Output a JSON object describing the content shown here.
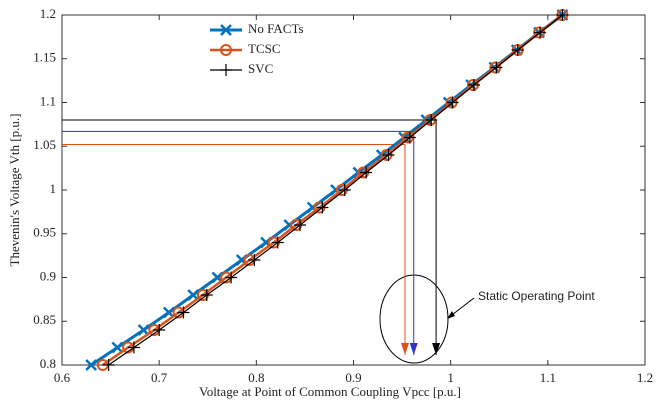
{
  "chart_data": {
    "type": "line",
    "xlabel": "Voltage at Point of Common Coupling Vpcc [p.u.]",
    "ylabel": "Thevenin's Voltage Vth [p.u.]",
    "xlim": [
      0.6,
      1.2
    ],
    "ylim": [
      0.8,
      1.2
    ],
    "xticks": [
      0.6,
      0.7,
      0.8,
      0.9,
      1,
      1.1,
      1.2
    ],
    "yticks": [
      0.8,
      0.85,
      0.9,
      0.95,
      1,
      1.05,
      1.1,
      1.15,
      1.2
    ],
    "grid": false,
    "legend": "upper center",
    "series": [
      {
        "name": "No FACTs",
        "color": "#0072bd",
        "marker": "x",
        "x": [
          0.63,
          0.657,
          0.684,
          0.71,
          0.735,
          0.76,
          0.785,
          0.81,
          0.834,
          0.858,
          0.882,
          0.905,
          0.929,
          0.952,
          0.975,
          0.998,
          1.021,
          1.045,
          1.068,
          1.091,
          1.115
        ],
        "values": [
          0.8,
          0.82,
          0.84,
          0.86,
          0.88,
          0.9,
          0.92,
          0.94,
          0.96,
          0.98,
          1.0,
          1.02,
          1.04,
          1.06,
          1.08,
          1.1,
          1.12,
          1.14,
          1.16,
          1.18,
          1.2
        ]
      },
      {
        "name": "TCSC",
        "color": "#d95319",
        "marker": "o",
        "x": [
          0.642,
          0.668,
          0.695,
          0.72,
          0.745,
          0.769,
          0.793,
          0.818,
          0.841,
          0.865,
          0.888,
          0.91,
          0.934,
          0.956,
          0.979,
          1.001,
          1.023,
          1.046,
          1.069,
          1.091,
          1.115
        ],
        "values": [
          0.8,
          0.82,
          0.84,
          0.86,
          0.88,
          0.9,
          0.92,
          0.94,
          0.96,
          0.98,
          1.0,
          1.02,
          1.04,
          1.06,
          1.08,
          1.1,
          1.12,
          1.14,
          1.16,
          1.18,
          1.2
        ]
      },
      {
        "name": "SVC",
        "color": "#000000",
        "marker": "+",
        "x": [
          0.648,
          0.674,
          0.7,
          0.725,
          0.749,
          0.774,
          0.798,
          0.822,
          0.845,
          0.868,
          0.891,
          0.913,
          0.936,
          0.958,
          0.98,
          1.002,
          1.024,
          1.047,
          1.069,
          1.092,
          1.115
        ],
        "values": [
          0.8,
          0.82,
          0.84,
          0.86,
          0.88,
          0.9,
          0.92,
          0.94,
          0.96,
          0.98,
          1.0,
          1.02,
          1.04,
          1.06,
          1.08,
          1.1,
          1.12,
          1.14,
          1.16,
          1.18,
          1.2
        ]
      }
    ],
    "reference_lines": [
      {
        "x": 0.953,
        "y": 1.052,
        "color": "#d95319"
      },
      {
        "x": 0.962,
        "y": 1.067,
        "color": "#3333cc"
      },
      {
        "x": 0.985,
        "y": 1.08,
        "color": "#000000"
      }
    ],
    "annotation": "Static Operating Point"
  }
}
